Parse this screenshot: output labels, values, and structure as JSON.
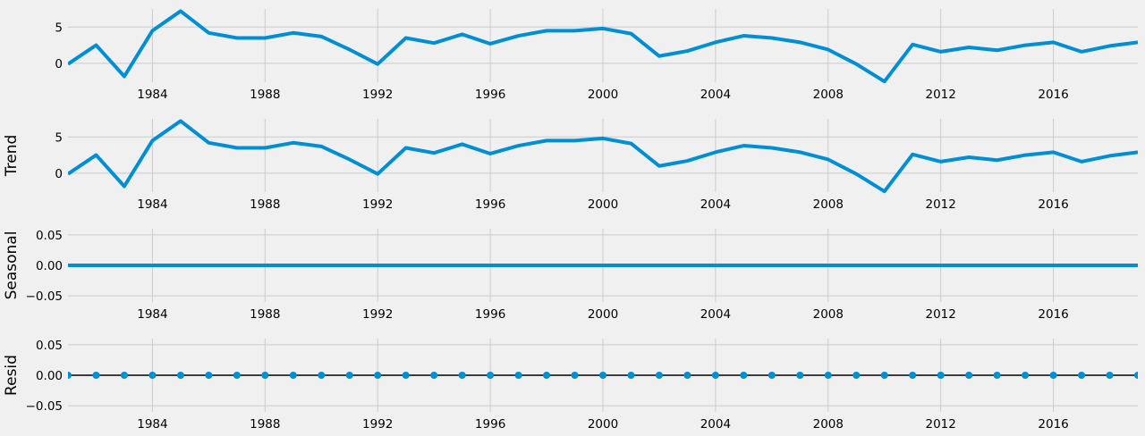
{
  "chart_data": [
    {
      "type": "line",
      "ylabel": "",
      "ylim": [
        -2.6,
        7.5
      ],
      "yticks": [
        0,
        5
      ],
      "xlim": [
        1981,
        2019
      ],
      "xticks": [
        1984,
        1988,
        1992,
        1996,
        2000,
        2004,
        2008,
        2012,
        2016
      ],
      "series": [
        {
          "x": [
            1981,
            1982,
            1983,
            1984,
            1985,
            1986,
            1987,
            1988,
            1989,
            1990,
            1991,
            1992,
            1993,
            1994,
            1995,
            1996,
            1997,
            1998,
            1999,
            2000,
            2001,
            2002,
            2003,
            2004,
            2005,
            2006,
            2007,
            2008,
            2009,
            2010,
            2011,
            2012,
            2013,
            2014,
            2015,
            2016,
            2017,
            2018,
            2019
          ],
          "y": [
            -0.1,
            2.5,
            -1.8,
            4.5,
            7.2,
            4.2,
            3.5,
            3.5,
            4.2,
            3.7,
            1.9,
            -0.1,
            3.5,
            2.8,
            4.0,
            2.7,
            3.8,
            4.5,
            4.5,
            4.8,
            4.1,
            1.0,
            1.7,
            2.9,
            3.8,
            3.5,
            2.9,
            1.9,
            -0.1,
            -2.5,
            2.6,
            1.6,
            2.2,
            1.8,
            2.5,
            2.9,
            1.6,
            2.4,
            2.9
          ],
          "color": "#008fd5",
          "style": "line"
        }
      ]
    },
    {
      "type": "line",
      "ylabel": "Trend",
      "ylim": [
        -2.6,
        7.5
      ],
      "yticks": [
        0,
        5
      ],
      "xlim": [
        1981,
        2019
      ],
      "xticks": [
        1984,
        1988,
        1992,
        1996,
        2000,
        2004,
        2008,
        2012,
        2016
      ],
      "series": [
        {
          "x": [
            1981,
            1982,
            1983,
            1984,
            1985,
            1986,
            1987,
            1988,
            1989,
            1990,
            1991,
            1992,
            1993,
            1994,
            1995,
            1996,
            1997,
            1998,
            1999,
            2000,
            2001,
            2002,
            2003,
            2004,
            2005,
            2006,
            2007,
            2008,
            2009,
            2010,
            2011,
            2012,
            2013,
            2014,
            2015,
            2016,
            2017,
            2018,
            2019
          ],
          "y": [
            -0.1,
            2.5,
            -1.8,
            4.5,
            7.2,
            4.2,
            3.5,
            3.5,
            4.2,
            3.7,
            1.9,
            -0.1,
            3.5,
            2.8,
            4.0,
            2.7,
            3.8,
            4.5,
            4.5,
            4.8,
            4.1,
            1.0,
            1.7,
            2.9,
            3.8,
            3.5,
            2.9,
            1.9,
            -0.1,
            -2.5,
            2.6,
            1.6,
            2.2,
            1.8,
            2.5,
            2.9,
            1.6,
            2.4,
            2.9
          ],
          "color": "#008fd5",
          "style": "line"
        }
      ]
    },
    {
      "type": "line",
      "ylabel": "Seasonal",
      "ylim": [
        -0.06,
        0.06
      ],
      "yticks": [
        0.05,
        0.0,
        -0.05
      ],
      "ytick_labels": [
        "0.05",
        "0.00",
        "−0.05"
      ],
      "xlim": [
        1981,
        2019
      ],
      "xticks": [
        1984,
        1988,
        1992,
        1996,
        2000,
        2004,
        2008,
        2012,
        2016
      ],
      "series": [
        {
          "x": [
            1981,
            1982,
            1983,
            1984,
            1985,
            1986,
            1987,
            1988,
            1989,
            1990,
            1991,
            1992,
            1993,
            1994,
            1995,
            1996,
            1997,
            1998,
            1999,
            2000,
            2001,
            2002,
            2003,
            2004,
            2005,
            2006,
            2007,
            2008,
            2009,
            2010,
            2011,
            2012,
            2013,
            2014,
            2015,
            2016,
            2017,
            2018,
            2019
          ],
          "y": [
            0,
            0,
            0,
            0,
            0,
            0,
            0,
            0,
            0,
            0,
            0,
            0,
            0,
            0,
            0,
            0,
            0,
            0,
            0,
            0,
            0,
            0,
            0,
            0,
            0,
            0,
            0,
            0,
            0,
            0,
            0,
            0,
            0,
            0,
            0,
            0,
            0,
            0,
            0
          ],
          "color": "#008fd5",
          "style": "line"
        }
      ]
    },
    {
      "type": "scatter",
      "ylabel": "Resid",
      "ylim": [
        -0.06,
        0.06
      ],
      "yticks": [
        0.05,
        0.0,
        -0.05
      ],
      "ytick_labels": [
        "0.05",
        "0.00",
        "−0.05"
      ],
      "xlim": [
        1981,
        2019
      ],
      "xticks": [
        1984,
        1988,
        1992,
        1996,
        2000,
        2004,
        2008,
        2012,
        2016
      ],
      "zero_line": true,
      "series": [
        {
          "x": [
            1981,
            1982,
            1983,
            1984,
            1985,
            1986,
            1987,
            1988,
            1989,
            1990,
            1991,
            1992,
            1993,
            1994,
            1995,
            1996,
            1997,
            1998,
            1999,
            2000,
            2001,
            2002,
            2003,
            2004,
            2005,
            2006,
            2007,
            2008,
            2009,
            2010,
            2011,
            2012,
            2013,
            2014,
            2015,
            2016,
            2017,
            2018,
            2019
          ],
          "y": [
            0,
            0,
            0,
            0,
            0,
            0,
            0,
            0,
            0,
            0,
            0,
            0,
            0,
            0,
            0,
            0,
            0,
            0,
            0,
            0,
            0,
            0,
            0,
            0,
            0,
            0,
            0,
            0,
            0,
            0,
            0,
            0,
            0,
            0,
            0,
            0,
            0,
            0,
            0
          ],
          "color": "#008fd5",
          "style": "markers"
        }
      ]
    }
  ]
}
